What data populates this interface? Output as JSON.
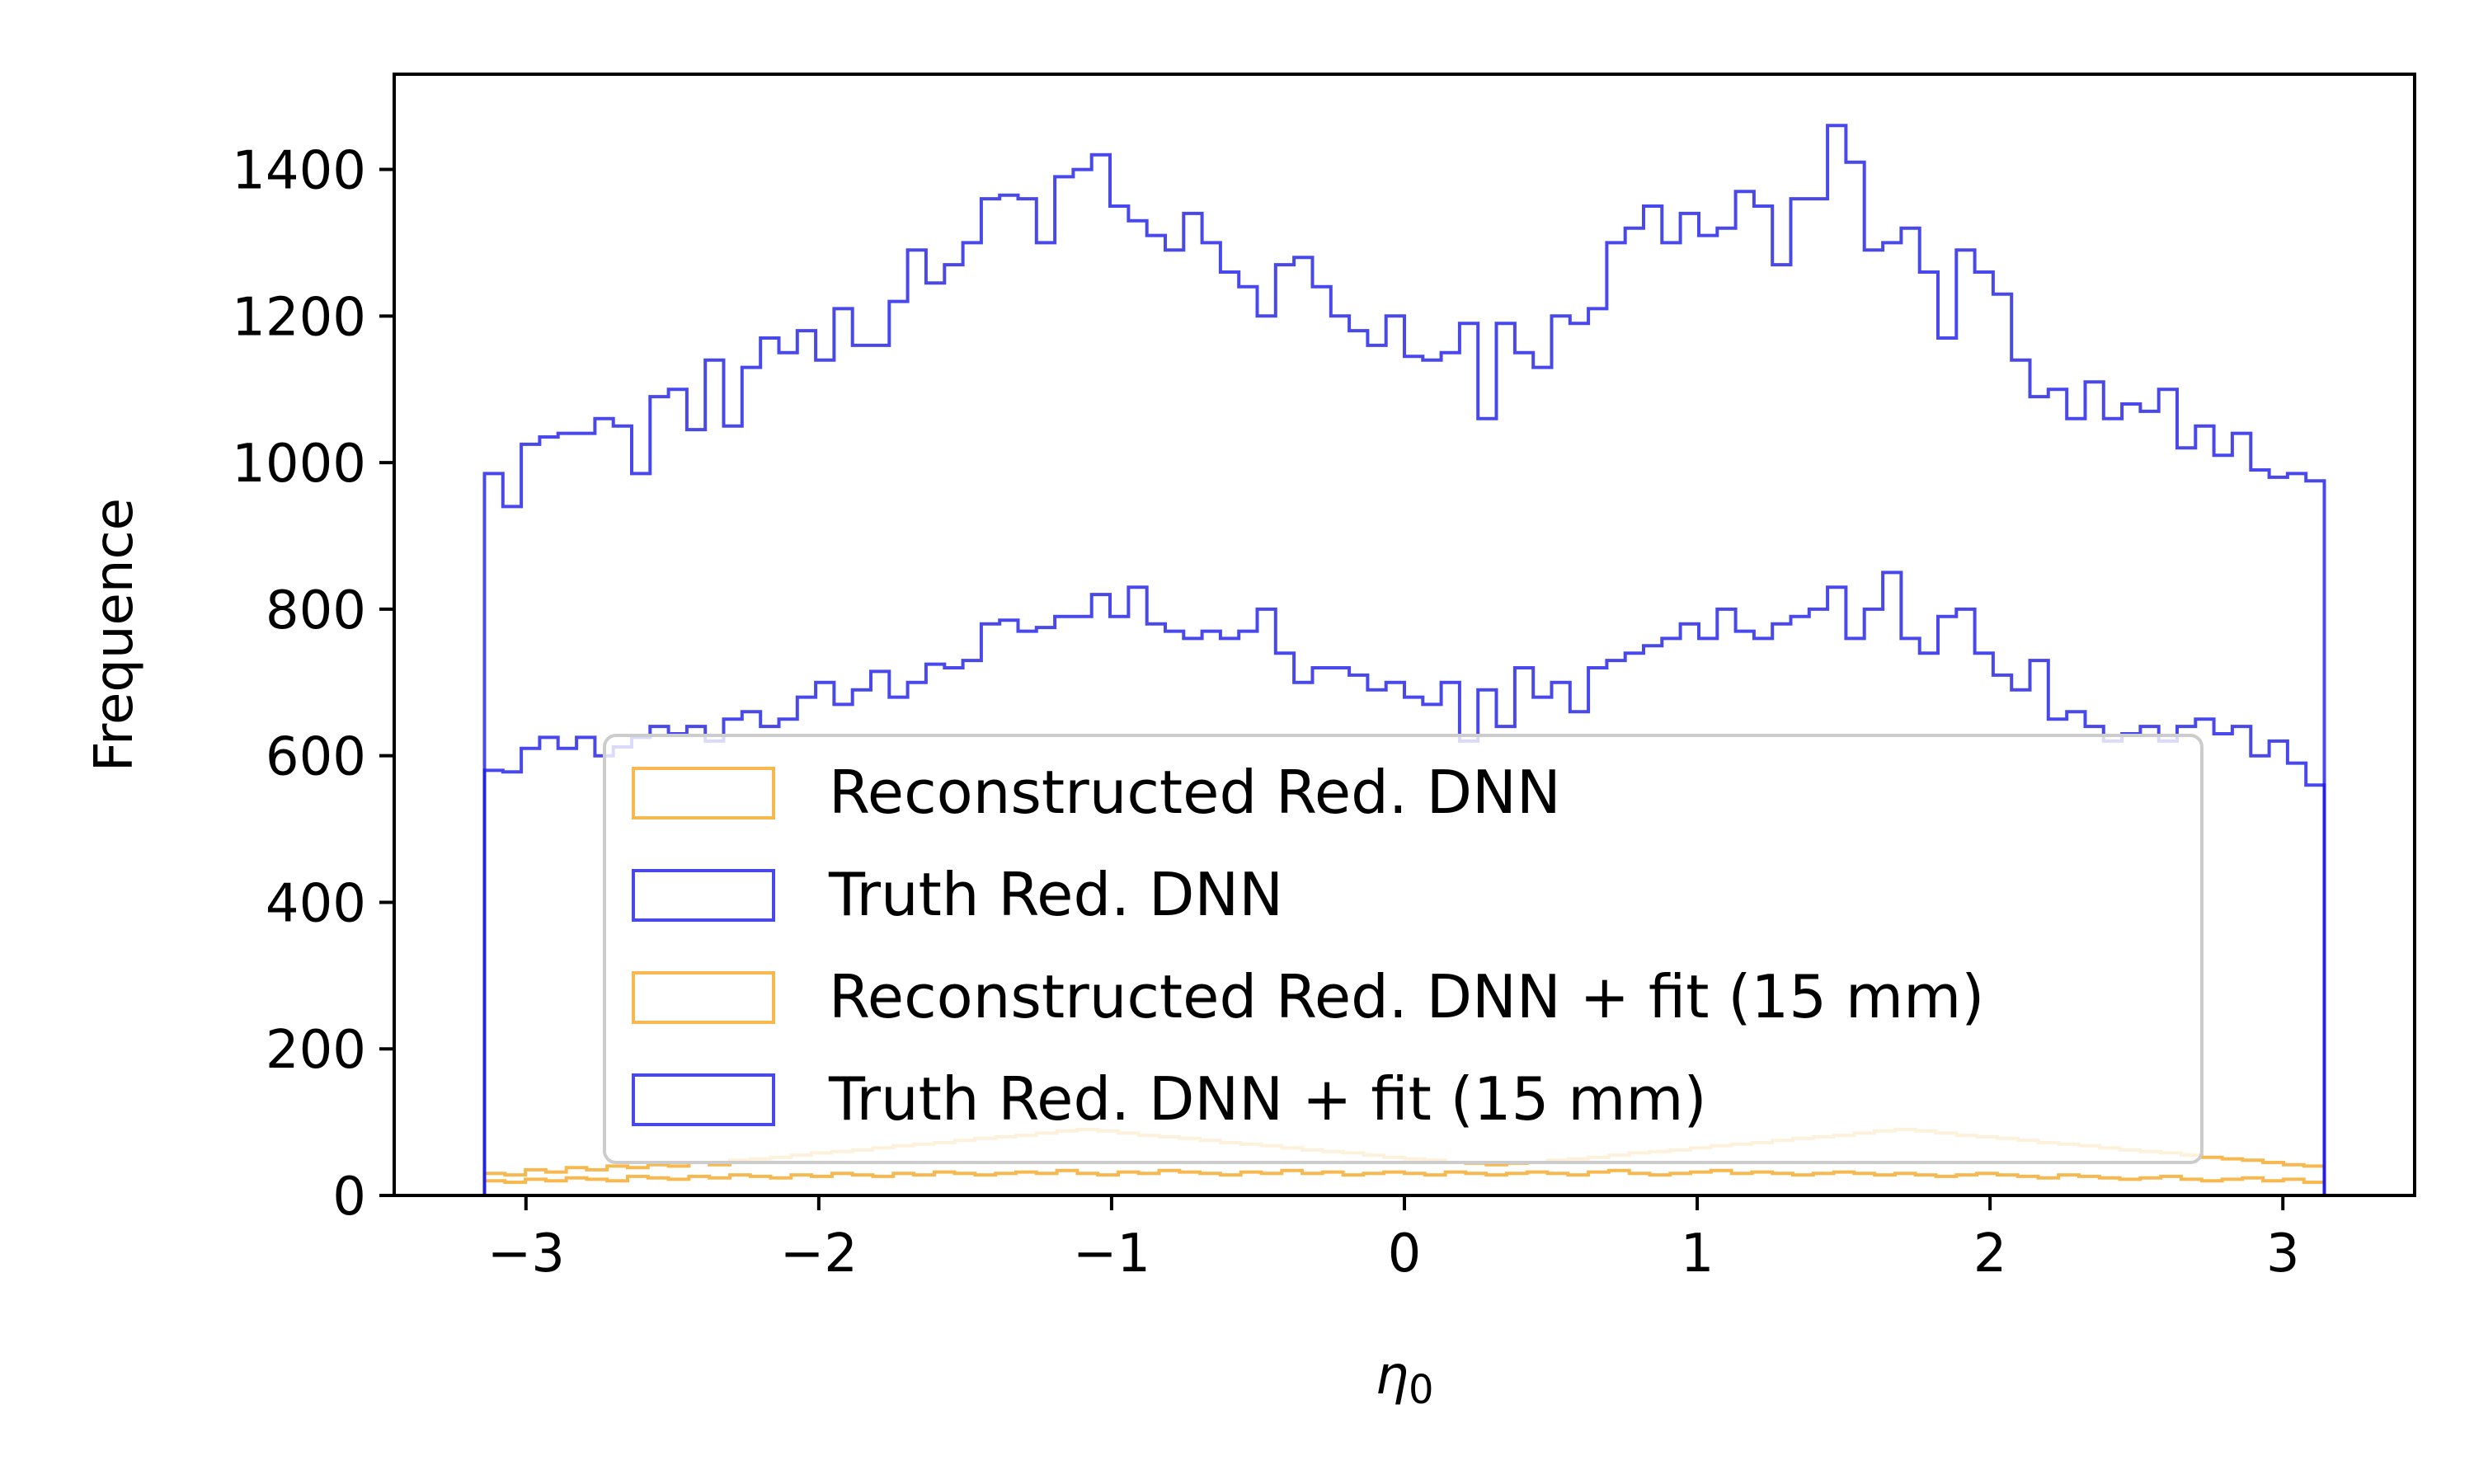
{
  "chart_data": {
    "type": "histogram-step",
    "xlabel": "η",
    "xlabel_sub": "0",
    "ylabel": "Frequence",
    "xlim": [
      -3.45,
      3.45
    ],
    "ylim": [
      0,
      1530
    ],
    "xticks": [
      -3,
      -2,
      -1,
      0,
      1,
      2,
      3
    ],
    "xtick_labels": [
      "−3",
      "−2",
      "−1",
      "0",
      "1",
      "2",
      "3"
    ],
    "yticks": [
      0,
      200,
      400,
      600,
      800,
      1000,
      1200,
      1400
    ],
    "ytick_labels": [
      "0",
      "200",
      "400",
      "600",
      "800",
      "1000",
      "1200",
      "1400"
    ],
    "bin_range": [
      -3.1416,
      3.1416
    ],
    "legend_position": "lower-center",
    "series": [
      {
        "name": "Reconstructed Red. DNN",
        "color": "#f5a623",
        "values": [
          20,
          18,
          22,
          20,
          24,
          22,
          20,
          26,
          24,
          22,
          26,
          24,
          28,
          26,
          24,
          28,
          26,
          30,
          28,
          26,
          30,
          28,
          32,
          30,
          28,
          30,
          32,
          30,
          34,
          30,
          28,
          32,
          30,
          34,
          32,
          30,
          28,
          32,
          30,
          34,
          30,
          32,
          28,
          30,
          32,
          30,
          28,
          32,
          30,
          28,
          30,
          32,
          30,
          28,
          32,
          34,
          30,
          28,
          30,
          32,
          34,
          30,
          32,
          30,
          28,
          30,
          32,
          30,
          28,
          30,
          28,
          26,
          28,
          30,
          28,
          26,
          24,
          28,
          26,
          24,
          22,
          24,
          26,
          22,
          20,
          22,
          24,
          20,
          22,
          18
        ]
      },
      {
        "name": "Truth Red. DNN",
        "color": "#1a1ae6",
        "values": [
          580,
          578,
          610,
          625,
          610,
          625,
          600,
          612,
          625,
          640,
          630,
          640,
          620,
          650,
          660,
          640,
          650,
          680,
          700,
          670,
          690,
          715,
          680,
          700,
          725,
          720,
          730,
          780,
          785,
          770,
          775,
          790,
          790,
          820,
          790,
          830,
          780,
          770,
          760,
          770,
          760,
          770,
          800,
          740,
          700,
          720,
          720,
          710,
          690,
          700,
          680,
          670,
          700,
          620,
          690,
          640,
          720,
          680,
          700,
          660,
          720,
          730,
          740,
          750,
          760,
          780,
          760,
          800,
          770,
          760,
          780,
          790,
          800,
          830,
          760,
          800,
          850,
          760,
          740,
          790,
          800,
          740,
          710,
          690,
          730,
          650,
          660,
          640,
          620,
          630,
          640,
          620,
          640,
          650,
          630,
          640,
          600,
          620,
          590,
          560
        ]
      },
      {
        "name": "Reconstructed Red. DNN + fit (15 mm)",
        "color": "#f5a623",
        "values": [
          30,
          28,
          35,
          32,
          38,
          35,
          40,
          38,
          42,
          40,
          45,
          42,
          48,
          50,
          52,
          55,
          58,
          60,
          62,
          65,
          68,
          70,
          72,
          75,
          78,
          80,
          82,
          85,
          88,
          90,
          88,
          85,
          82,
          80,
          78,
          75,
          72,
          70,
          68,
          65,
          62,
          60,
          58,
          55,
          52,
          50,
          48,
          45,
          44,
          42,
          44,
          45,
          48,
          50,
          52,
          55,
          58,
          60,
          62,
          65,
          68,
          70,
          72,
          75,
          78,
          80,
          82,
          85,
          88,
          90,
          88,
          85,
          82,
          80,
          78,
          75,
          72,
          70,
          68,
          65,
          62,
          60,
          58,
          55,
          52,
          50,
          48,
          45,
          42,
          40
        ]
      },
      {
        "name": "Truth Red. DNN + fit (15 mm)",
        "color": "#1a1ae6",
        "values": [
          985,
          940,
          1025,
          1035,
          1040,
          1040,
          1060,
          1050,
          985,
          1090,
          1100,
          1045,
          1140,
          1050,
          1130,
          1170,
          1150,
          1180,
          1140,
          1210,
          1160,
          1160,
          1220,
          1290,
          1245,
          1270,
          1300,
          1360,
          1365,
          1360,
          1300,
          1390,
          1400,
          1420,
          1350,
          1330,
          1310,
          1290,
          1340,
          1300,
          1260,
          1240,
          1200,
          1270,
          1280,
          1240,
          1200,
          1180,
          1160,
          1200,
          1145,
          1140,
          1150,
          1190,
          1060,
          1190,
          1150,
          1130,
          1200,
          1190,
          1210,
          1300,
          1320,
          1350,
          1300,
          1340,
          1310,
          1320,
          1370,
          1350,
          1270,
          1360,
          1360,
          1460,
          1410,
          1290,
          1300,
          1320,
          1260,
          1170,
          1290,
          1260,
          1230,
          1140,
          1090,
          1100,
          1060,
          1110,
          1060,
          1080,
          1070,
          1100,
          1020,
          1050,
          1010,
          1040,
          990,
          980,
          985,
          975
        ]
      }
    ]
  }
}
